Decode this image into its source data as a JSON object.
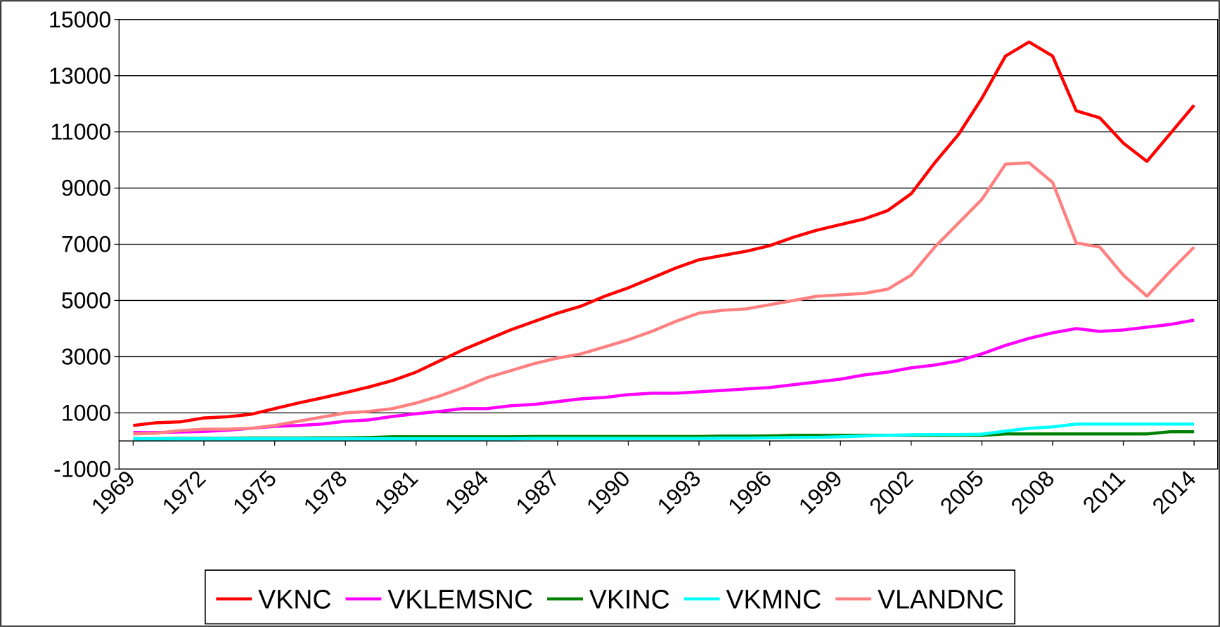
{
  "chart_data": {
    "type": "line",
    "x": [
      1969,
      1970,
      1971,
      1972,
      1973,
      1974,
      1975,
      1976,
      1977,
      1978,
      1979,
      1980,
      1981,
      1982,
      1983,
      1984,
      1985,
      1986,
      1987,
      1988,
      1989,
      1990,
      1991,
      1992,
      1993,
      1994,
      1995,
      1996,
      1997,
      1998,
      1999,
      2000,
      2001,
      2002,
      2003,
      2004,
      2005,
      2006,
      2007,
      2008,
      2009,
      2010,
      2011,
      2012,
      2013,
      2014
    ],
    "xlim": [
      1968.4,
      2015
    ],
    "xticks": [
      1969,
      1972,
      1975,
      1978,
      1981,
      1984,
      1987,
      1990,
      1993,
      1996,
      1999,
      2002,
      2005,
      2008,
      2011,
      2014
    ],
    "ylim": [
      -1000,
      15000
    ],
    "yticks": [
      -1000,
      1000,
      3000,
      5000,
      7000,
      9000,
      11000,
      13000,
      15000
    ],
    "grid": true,
    "legend": "bottom",
    "series": [
      {
        "name": "VKNC",
        "color": "#ff0000",
        "values": [
          550,
          650,
          680,
          820,
          860,
          950,
          1150,
          1350,
          1530,
          1720,
          1920,
          2150,
          2450,
          2850,
          3250,
          3600,
          3950,
          4250,
          4550,
          4800,
          5150,
          5450,
          5800,
          6150,
          6450,
          6600,
          6750,
          6950,
          7250,
          7500,
          7700,
          7900,
          8200,
          8800,
          9900,
          10900,
          12200,
          13700,
          14200,
          13700,
          11750,
          11500,
          10600,
          9950,
          10950,
          11950
        ]
      },
      {
        "name": "VKLEMSNC",
        "color": "#ff00ff",
        "values": [
          300,
          300,
          320,
          340,
          380,
          450,
          520,
          550,
          600,
          700,
          750,
          870,
          970,
          1050,
          1150,
          1150,
          1250,
          1300,
          1400,
          1500,
          1550,
          1650,
          1700,
          1700,
          1750,
          1800,
          1850,
          1900,
          2000,
          2100,
          2200,
          2350,
          2450,
          2600,
          2700,
          2850,
          3100,
          3400,
          3650,
          3850,
          4000,
          3900,
          3950,
          4050,
          4150,
          4300
        ]
      },
      {
        "name": "VKINC",
        "color": "#008000",
        "values": [
          80,
          80,
          90,
          90,
          90,
          100,
          100,
          100,
          110,
          110,
          120,
          150,
          150,
          150,
          150,
          150,
          150,
          160,
          160,
          160,
          160,
          160,
          160,
          160,
          160,
          170,
          170,
          180,
          200,
          200,
          200,
          200,
          200,
          200,
          200,
          200,
          200,
          250,
          250,
          250,
          250,
          250,
          250,
          250,
          330,
          330
        ]
      },
      {
        "name": "VKMNC",
        "color": "#00ffff",
        "values": [
          80,
          80,
          80,
          80,
          80,
          80,
          80,
          80,
          80,
          80,
          80,
          80,
          80,
          80,
          80,
          80,
          80,
          90,
          90,
          90,
          90,
          90,
          90,
          90,
          90,
          100,
          100,
          110,
          120,
          130,
          150,
          180,
          200,
          220,
          230,
          230,
          240,
          350,
          450,
          500,
          600,
          600,
          600,
          600,
          600,
          600
        ]
      },
      {
        "name": "VLANDNC",
        "color": "#ff8080",
        "values": [
          250,
          280,
          370,
          420,
          420,
          450,
          550,
          700,
          850,
          1000,
          1050,
          1150,
          1350,
          1600,
          1900,
          2250,
          2500,
          2750,
          2950,
          3100,
          3350,
          3600,
          3900,
          4250,
          4550,
          4650,
          4700,
          4850,
          5000,
          5150,
          5200,
          5250,
          5400,
          5900,
          6900,
          7750,
          8600,
          9850,
          9900,
          9200,
          7050,
          6900,
          5900,
          5150,
          6050,
          6900
        ]
      }
    ]
  }
}
